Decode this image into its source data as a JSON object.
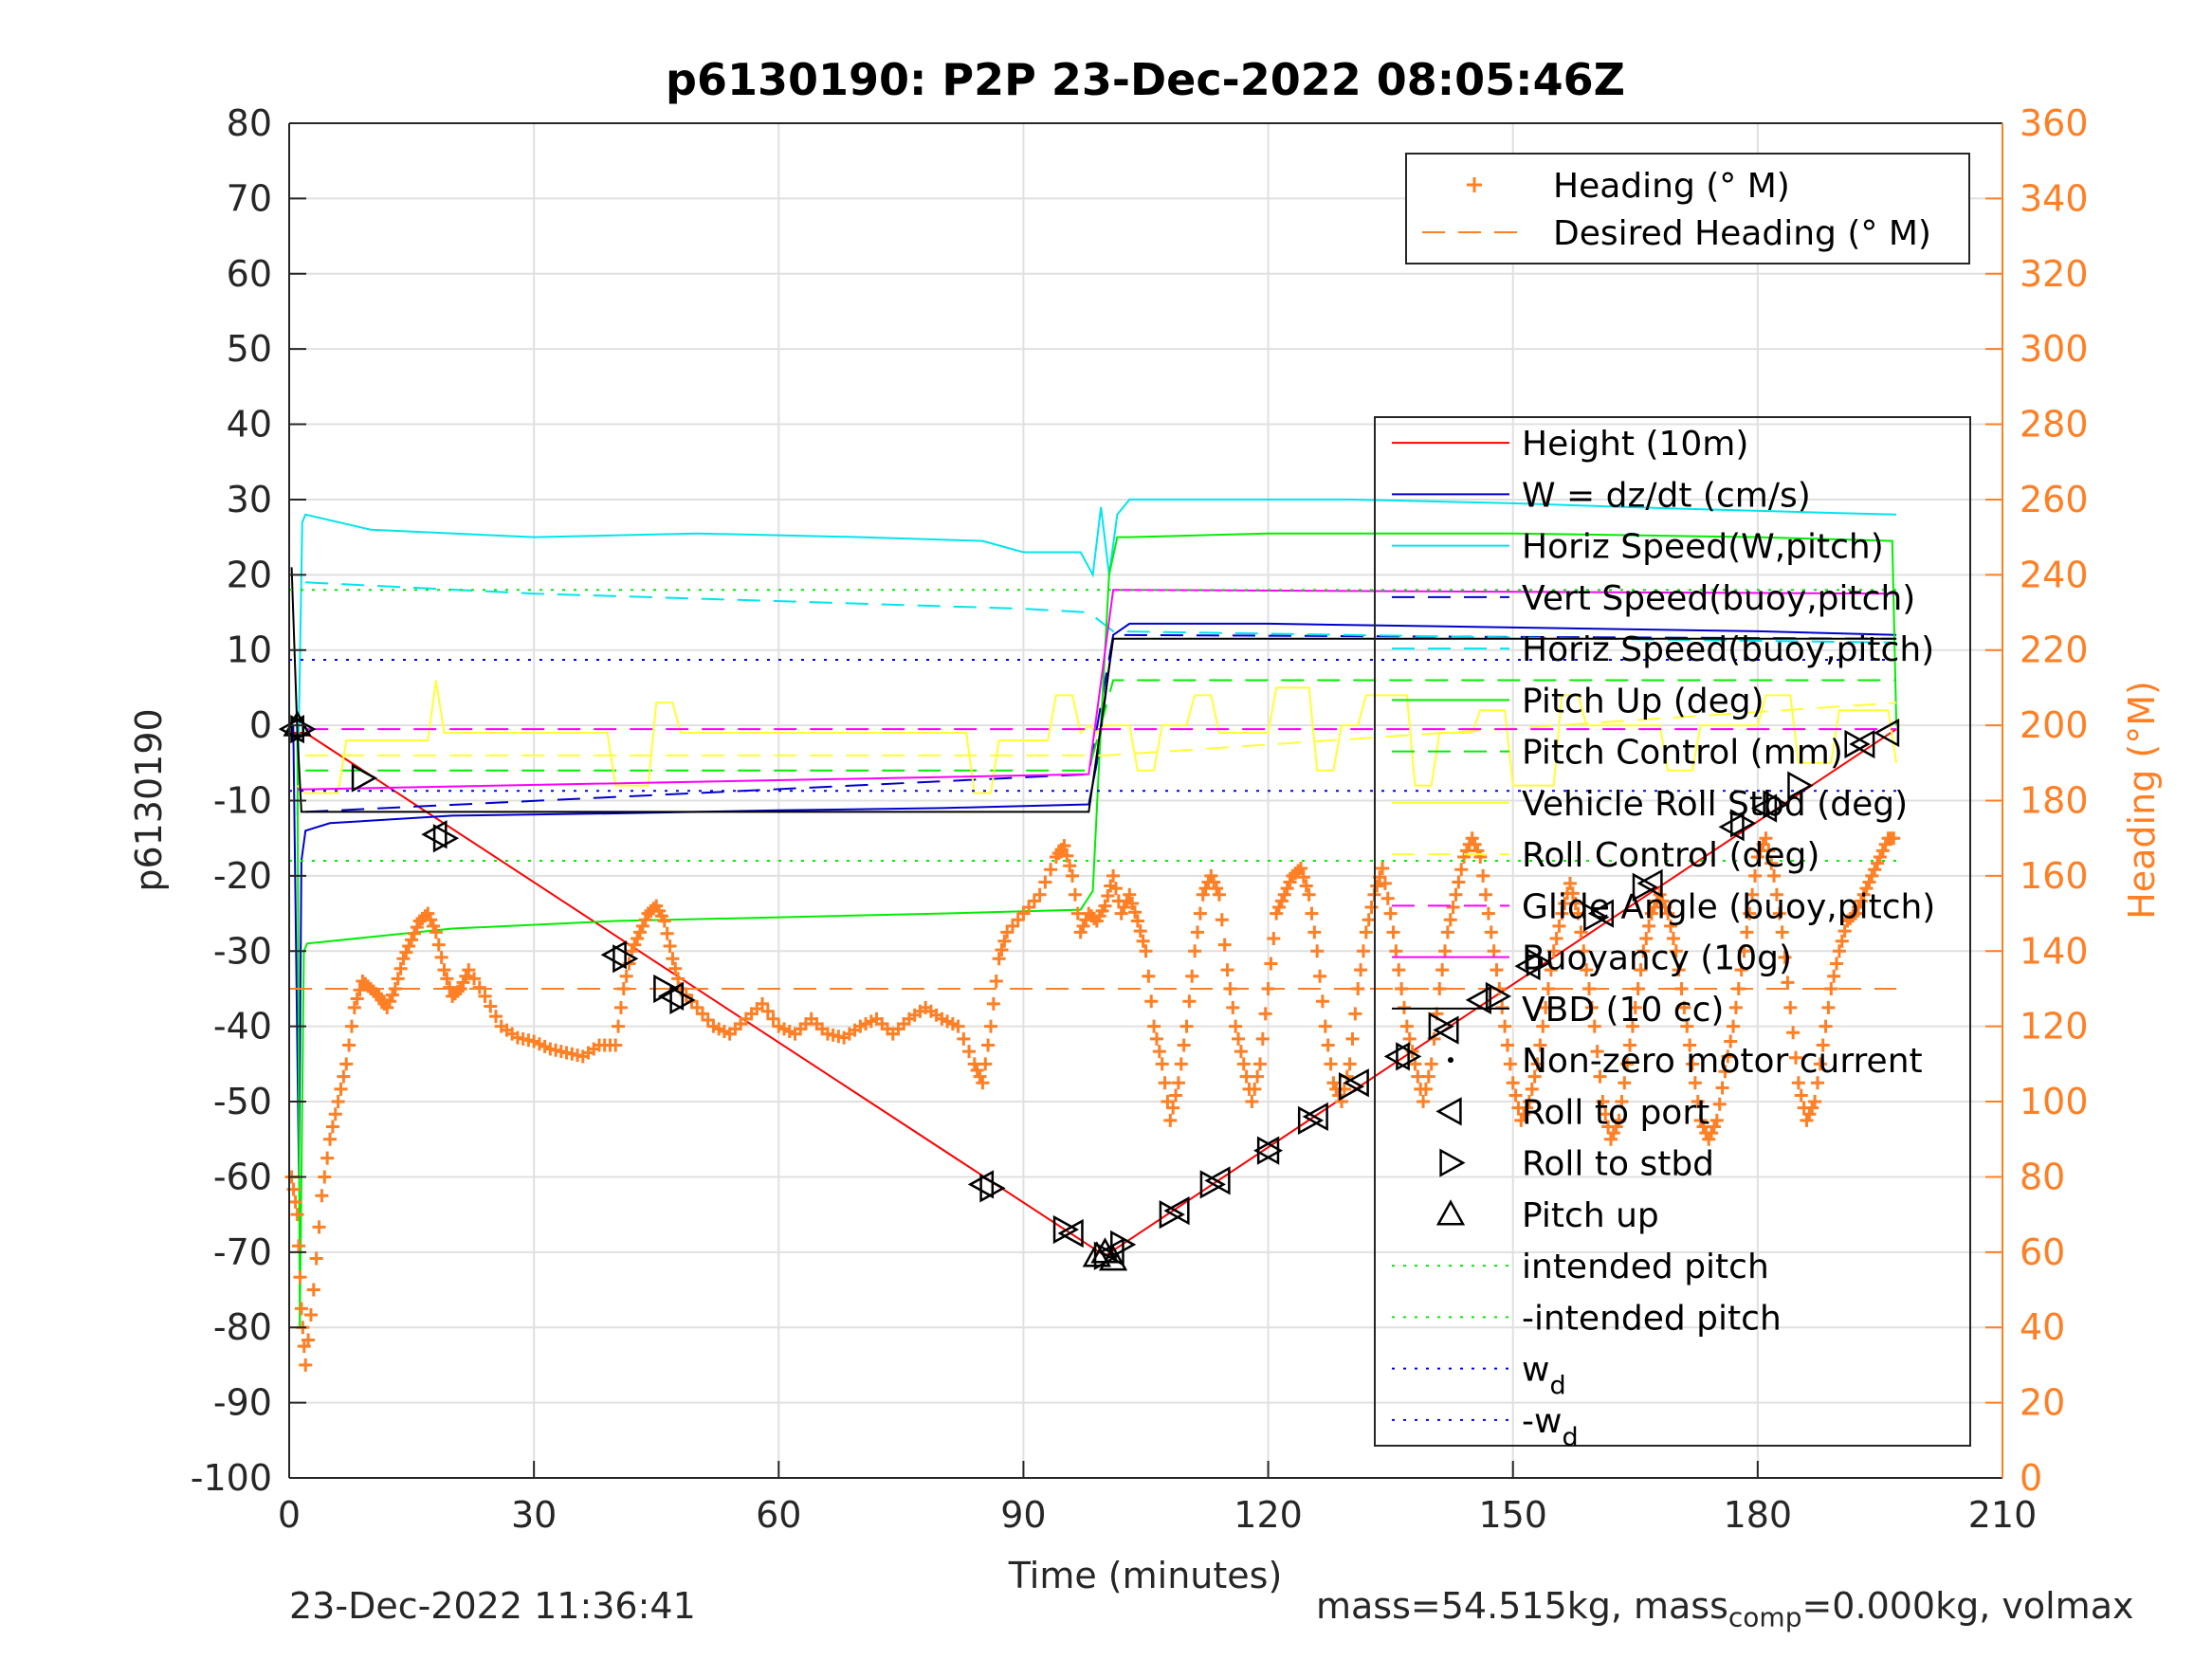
{
  "chart_data": {
    "type": "line",
    "title": "p6130190: P2P 23-Dec-2022 08:05:46Z",
    "xlabel": "Time (minutes)",
    "ylabel": "p6130190",
    "y2label": "Heading (°M)",
    "xlim": [
      0,
      210
    ],
    "ylim": [
      -100,
      80
    ],
    "y2lim": [
      0,
      360
    ],
    "xticks": [
      0,
      30,
      60,
      90,
      120,
      150,
      180,
      210
    ],
    "yticks": [
      -100,
      -90,
      -80,
      -70,
      -60,
      -50,
      -40,
      -30,
      -20,
      -10,
      0,
      10,
      20,
      30,
      40,
      50,
      60,
      70,
      80
    ],
    "y2ticks": [
      0,
      20,
      40,
      60,
      80,
      100,
      120,
      140,
      160,
      180,
      200,
      220,
      240,
      260,
      280,
      300,
      320,
      340,
      360
    ],
    "grid": true,
    "colors": {
      "heading": "#FF7F24",
      "height": "#FF0000",
      "w": "#0000CD",
      "horiz_speed_pitch": "#00E5EE",
      "pitch": "#00EE00",
      "roll": "#FFFF33",
      "glide": "#FF00FF",
      "vbd": "#000000",
      "intended_pitch": "#00EE00",
      "wd": "#0000FF"
    },
    "legend_heading": {
      "placement": "top-right",
      "entries": [
        {
          "label": "Heading (° M)",
          "style": "plus",
          "color": "#FF7F24"
        },
        {
          "label": "Desired Heading (° M)",
          "style": "dash",
          "color": "#FF7F24"
        }
      ]
    },
    "legend_main": {
      "placement": "right",
      "entries": [
        {
          "label": "Height (10m)",
          "style": "solid",
          "color": "#FF0000"
        },
        {
          "label": "W = dz/dt (cm/s)",
          "style": "solid",
          "color": "#0000CD"
        },
        {
          "label": "Horiz Speed(W,pitch)",
          "style": "solid",
          "color": "#00E5EE"
        },
        {
          "label": "Vert Speed(buoy,pitch)",
          "style": "dash",
          "color": "#0000CD"
        },
        {
          "label": "Horiz Speed(buoy,pitch)",
          "style": "dash",
          "color": "#00E5EE"
        },
        {
          "label": "Pitch Up (deg)",
          "style": "solid",
          "color": "#00EE00"
        },
        {
          "label": "Pitch Control (mm)",
          "style": "dash",
          "color": "#00EE00"
        },
        {
          "label": "Vehicle Roll Stbd (deg)",
          "style": "solid",
          "color": "#FFFF33"
        },
        {
          "label": "Roll Control (deg)",
          "style": "dash",
          "color": "#FFFF33"
        },
        {
          "label": "Glide Angle (buoy,pitch)",
          "style": "dash",
          "color": "#FF00FF"
        },
        {
          "label": "Buoyancy (10g)",
          "style": "solid",
          "color": "#FF00FF"
        },
        {
          "label": "VBD (10 cc)",
          "style": "solid",
          "color": "#000000"
        },
        {
          "label": "Non-zero motor current",
          "style": "dot",
          "color": "#000000"
        },
        {
          "label": "Roll to port",
          "style": "tri-left",
          "color": "#000000"
        },
        {
          "label": "Roll to stbd",
          "style": "tri-right",
          "color": "#000000"
        },
        {
          "label": "Pitch up",
          "style": "tri-up",
          "color": "#000000"
        },
        {
          "label": "intended pitch",
          "style": "dotted",
          "color": "#00EE00"
        },
        {
          "label": "-intended pitch",
          "style": "dotted",
          "color": "#00EE00"
        },
        {
          "label": "w",
          "sub": "d",
          "style": "dotted",
          "color": "#0000FF"
        },
        {
          "label": "-w",
          "sub": "d",
          "style": "dotted",
          "color": "#0000FF"
        }
      ]
    },
    "series": [
      {
        "name": "Height (10m)",
        "color": "#FF0000",
        "x": [
          0.5,
          2,
          100,
          197
        ],
        "y": [
          -1,
          -1,
          -70.5,
          -0.5
        ]
      },
      {
        "name": "W = dz/dt (cm/s)",
        "color": "#0000CD",
        "x": [
          0.5,
          1.2,
          1.5,
          2,
          5,
          20,
          40,
          60,
          80,
          98,
          99,
          101,
          103,
          120,
          150,
          180,
          197
        ],
        "y": [
          0,
          -60,
          -18,
          -14,
          -13,
          -12,
          -11.7,
          -11.3,
          -11,
          -10.5,
          -5,
          12,
          13.5,
          13.5,
          13,
          12.5,
          12
        ]
      },
      {
        "name": "Horiz Speed(W,pitch)",
        "color": "#00E5EE",
        "x": [
          1,
          1.6,
          2,
          10,
          30,
          50,
          70,
          85,
          90,
          97,
          98.5,
          99.5,
          100.5,
          101.5,
          103,
          110,
          130,
          150,
          170,
          190,
          197
        ],
        "y": [
          -12,
          27,
          28,
          26,
          25,
          25.5,
          25,
          24.5,
          23,
          23,
          20,
          29,
          20,
          28,
          30,
          30,
          30,
          29.5,
          28.8,
          28.2,
          28
        ]
      },
      {
        "name": "Vert Speed(buoy,pitch)",
        "color": "#0000CD",
        "x": [
          2,
          98,
          101,
          197
        ],
        "y": [
          -11.5,
          -6.5,
          12,
          11.5
        ]
      },
      {
        "name": "Horiz Speed(buoy,pitch)",
        "color": "#00E5EE",
        "x": [
          2,
          30,
          60,
          90,
          98,
          101,
          130,
          160,
          197
        ],
        "y": [
          19,
          17.5,
          16.5,
          15.5,
          15,
          12.5,
          12,
          11.5,
          11
        ]
      },
      {
        "name": "Pitch Up (deg)",
        "color": "#00EE00",
        "x": [
          1,
          1.3,
          1.8,
          2.2,
          20,
          40,
          60,
          80,
          97,
          98.5,
          99.5,
          100.5,
          101.5,
          103,
          120,
          150,
          180,
          196.5,
          197
        ],
        "y": [
          0,
          -80,
          -30,
          -29,
          -27,
          -26,
          -25.5,
          -25,
          -24.5,
          -22,
          0,
          20,
          25,
          25,
          25.5,
          25.5,
          25,
          24.5,
          0
        ]
      },
      {
        "name": "Pitch Control (mm)",
        "color": "#00EE00",
        "x": [
          2,
          98,
          101,
          197
        ],
        "y": [
          -6,
          -6,
          6,
          6
        ]
      },
      {
        "name": "Vehicle Roll Stbd (deg)",
        "color": "#FFFF33",
        "x": [
          1,
          2,
          6,
          7,
          17,
          18,
          19,
          20,
          39,
          40,
          44,
          45,
          47,
          48,
          83,
          84,
          86,
          87,
          93,
          94,
          96,
          97,
          98,
          99,
          100,
          103,
          104,
          106,
          107,
          110,
          111,
          113,
          114,
          120,
          121,
          125,
          126,
          128,
          129,
          131,
          132,
          137,
          138,
          140,
          141,
          145,
          146,
          149,
          150,
          155,
          156,
          158,
          159,
          168,
          169,
          172,
          173,
          180,
          181,
          184,
          185,
          189,
          190,
          196,
          197
        ],
        "y": [
          -8,
          -9,
          -9,
          -2,
          -2,
          6,
          -1,
          -1,
          -1,
          -8,
          -8,
          3,
          3,
          -1,
          -1,
          -9,
          -9,
          -2,
          -2,
          4,
          4,
          -1,
          0,
          -1,
          0,
          0,
          -6,
          -6,
          0,
          0,
          4,
          4,
          -1,
          -1,
          5,
          5,
          -6,
          -6,
          0,
          0,
          4,
          4,
          -8,
          -8,
          -1,
          -1,
          2,
          2,
          -8,
          -8,
          4,
          4,
          0,
          0,
          -6,
          -6,
          0,
          0,
          4,
          4,
          -5,
          -5,
          2,
          2,
          -5
        ]
      },
      {
        "name": "Roll Control (deg)",
        "color": "#FFFF33",
        "x": [
          2,
          100,
          197
        ],
        "y": [
          -4,
          -4,
          3
        ]
      },
      {
        "name": "Glide Angle (buoy,pitch)",
        "color": "#FF00FF",
        "x": [
          2,
          197
        ],
        "y": [
          -0.5,
          -0.5
        ]
      },
      {
        "name": "Buoyancy (10g)",
        "color": "#FF00FF",
        "x": [
          1,
          2,
          98,
          101,
          197
        ],
        "y": [
          -8.5,
          -8.5,
          -6.5,
          18,
          17.5
        ]
      },
      {
        "name": "VBD (10 cc)",
        "color": "#000000",
        "x": [
          0.3,
          1,
          1.5,
          98,
          101,
          197
        ],
        "y": [
          21,
          -1,
          -11.5,
          -11.5,
          11.5,
          11.5
        ]
      },
      {
        "name": "Heading (° M)",
        "color": "#FF7F24",
        "axis": "right",
        "x": [
          0.3,
          1,
          1.5,
          2,
          3,
          4,
          5,
          6,
          7,
          8,
          9,
          10,
          11,
          12,
          13,
          14,
          15,
          16,
          17,
          18,
          19,
          20,
          21,
          22,
          24,
          26,
          28,
          30,
          32,
          34,
          36,
          38,
          40,
          41,
          42,
          43,
          44,
          45,
          46,
          47,
          48,
          50,
          52,
          54,
          56,
          58,
          60,
          62,
          64,
          66,
          68,
          70,
          72,
          74,
          76,
          78,
          80,
          82,
          84,
          85,
          86,
          87,
          88,
          90,
          92,
          94,
          95,
          96,
          97,
          98,
          99,
          100,
          101,
          102,
          103,
          104,
          105,
          106,
          107,
          108,
          109,
          110,
          111,
          112,
          113,
          114,
          115,
          116,
          117,
          118,
          119,
          120,
          121,
          122,
          123,
          124,
          125,
          126,
          127,
          128,
          129,
          130,
          131,
          132,
          133,
          134,
          135,
          136,
          137,
          138,
          139,
          140,
          141,
          142,
          143,
          144,
          145,
          146,
          147,
          148,
          149,
          150,
          151,
          152,
          153,
          154,
          155,
          156,
          157,
          158,
          159,
          160,
          161,
          162,
          163,
          164,
          165,
          166,
          167,
          168,
          169,
          170,
          171,
          172,
          173,
          174,
          175,
          176,
          177,
          178,
          179,
          180,
          181,
          182,
          183,
          184,
          185,
          186,
          187,
          188,
          189,
          190,
          191,
          192,
          193,
          194,
          195,
          196,
          197
        ],
        "y": [
          80,
          70,
          45,
          30,
          50,
          75,
          90,
          100,
          110,
          125,
          132,
          130,
          128,
          125,
          130,
          138,
          143,
          148,
          150,
          145,
          135,
          128,
          130,
          135,
          128,
          120,
          117,
          116,
          114,
          113,
          112,
          115,
          115,
          130,
          140,
          145,
          150,
          152,
          148,
          138,
          130,
          125,
          120,
          118,
          122,
          126,
          120,
          118,
          122,
          118,
          117,
          120,
          122,
          118,
          122,
          125,
          122,
          120,
          110,
          105,
          120,
          138,
          145,
          150,
          155,
          165,
          168,
          160,
          145,
          150,
          148,
          152,
          160,
          150,
          155,
          148,
          140,
          120,
          110,
          95,
          105,
          120,
          140,
          155,
          160,
          155,
          135,
          120,
          110,
          100,
          110,
          130,
          150,
          155,
          160,
          162,
          155,
          140,
          120,
          105,
          100,
          110,
          130,
          145,
          155,
          162,
          150,
          135,
          120,
          110,
          100,
          110,
          130,
          145,
          155,
          165,
          170,
          165,
          150,
          135,
          120,
          105,
          95,
          100,
          110,
          125,
          140,
          150,
          158,
          150,
          135,
          120,
          100,
          90,
          95,
          110,
          125,
          140,
          150,
          155,
          150,
          140,
          125,
          110,
          95,
          90,
          95,
          108,
          120,
          135,
          150,
          165,
          170,
          160,
          145,
          125,
          105,
          95,
          100,
          115,
          130,
          140,
          148,
          150,
          155,
          160,
          165,
          170,
          170
        ]
      },
      {
        "name": "Desired Heading (° M)",
        "color": "#FF7F24",
        "axis": "right",
        "x": [
          0,
          197
        ],
        "y": [
          130,
          130
        ]
      },
      {
        "name": "intended pitch",
        "color": "#00EE00",
        "x": [
          0,
          197
        ],
        "y": [
          18,
          18
        ]
      },
      {
        "name": "-intended pitch",
        "color": "#00EE00",
        "x": [
          0,
          197
        ],
        "y": [
          -18,
          -18
        ]
      },
      {
        "name": "w_d",
        "color": "#0000FF",
        "x": [
          0,
          197
        ],
        "y": [
          8.7,
          8.7
        ]
      },
      {
        "name": "-w_d",
        "color": "#0000FF",
        "x": [
          0,
          197
        ],
        "y": [
          -8.7,
          -8.7
        ]
      }
    ],
    "markers": {
      "roll_to_port": [
        [
          0.5,
          -0.5
        ],
        [
          18,
          -14.5
        ],
        [
          40,
          -30.5
        ],
        [
          47,
          -36
        ],
        [
          85,
          -61
        ],
        [
          96,
          -67.5
        ],
        [
          101,
          -70
        ],
        [
          109,
          -64.5
        ],
        [
          114,
          -60.5
        ],
        [
          120,
          -56.5
        ],
        [
          126,
          -52
        ],
        [
          131,
          -47.5
        ],
        [
          136,
          -44
        ],
        [
          142,
          -40.5
        ],
        [
          146,
          -36.5
        ],
        [
          152,
          -32
        ],
        [
          161,
          -25
        ],
        [
          167,
          -21
        ],
        [
          177,
          -13.5
        ],
        [
          181,
          -11
        ],
        [
          193,
          -2.5
        ],
        [
          196,
          -1
        ]
      ],
      "roll_to_stbd": [
        [
          1.5,
          -0.5
        ],
        [
          9,
          -7
        ],
        [
          19,
          -15
        ],
        [
          41,
          -31
        ],
        [
          46,
          -35
        ],
        [
          48,
          -36.5
        ],
        [
          86,
          -61.5
        ],
        [
          95,
          -67
        ],
        [
          100,
          -70.5
        ],
        [
          102,
          -69
        ],
        [
          108,
          -65
        ],
        [
          113,
          -61
        ],
        [
          120,
          -56.5
        ],
        [
          125,
          -52.5
        ],
        [
          130,
          -48
        ],
        [
          137,
          -44
        ],
        [
          141,
          -40
        ],
        [
          148,
          -36
        ],
        [
          153,
          -31.5
        ],
        [
          160,
          -25.5
        ],
        [
          166,
          -21.5
        ],
        [
          178,
          -13
        ],
        [
          182,
          -10.5
        ],
        [
          185,
          -8
        ],
        [
          192,
          -2.5
        ]
      ],
      "pitch_up": [
        [
          1,
          0
        ],
        [
          100,
          -70
        ],
        [
          99,
          -70.5
        ],
        [
          101,
          -71
        ]
      ]
    }
  },
  "footer": {
    "timestamp": "23-Dec-2022 11:36:41",
    "mass_prefix": "mass=54.515kg, mass",
    "mass_sub": "comp",
    "mass_suffix": "=0.000kg, volmax"
  }
}
